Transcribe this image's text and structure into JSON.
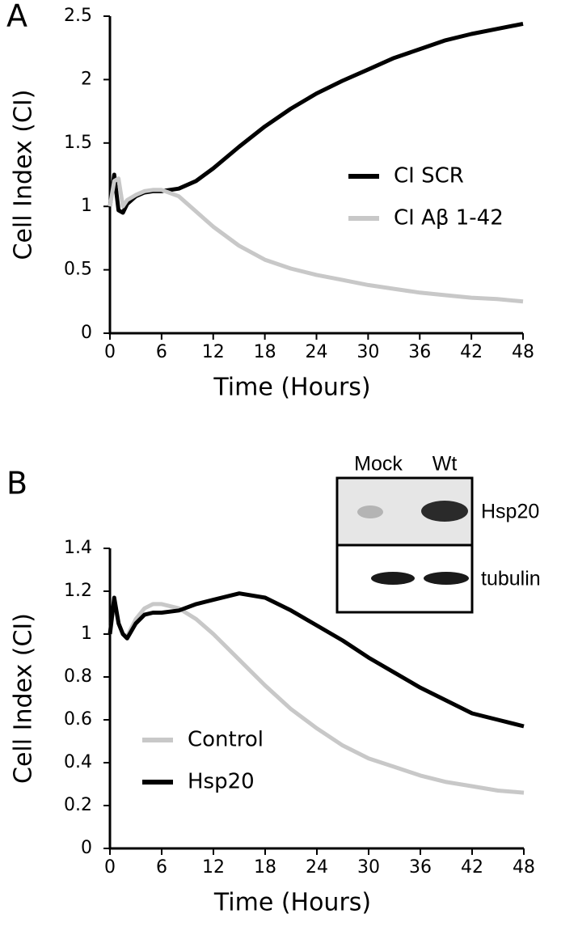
{
  "chart_data": [
    {
      "type": "line",
      "panel": "A",
      "xlabel": "Time (Hours)",
      "ylabel": "Cell Index (CI)",
      "x": [
        0,
        0.5,
        1,
        1.5,
        2,
        3,
        4,
        5,
        6,
        8,
        10,
        12,
        15,
        18,
        21,
        24,
        27,
        30,
        33,
        36,
        39,
        42,
        45,
        48
      ],
      "series": [
        {
          "name": "CI SCR",
          "color": "#000000",
          "values": [
            1.0,
            1.25,
            0.97,
            0.95,
            1.02,
            1.08,
            1.11,
            1.12,
            1.12,
            1.14,
            1.2,
            1.3,
            1.47,
            1.63,
            1.77,
            1.89,
            1.99,
            2.08,
            2.17,
            2.24,
            2.31,
            2.36,
            2.4,
            2.44
          ]
        },
        {
          "name": "CI Aβ 1-42",
          "color": "#c8c8c8",
          "values": [
            1.0,
            1.2,
            1.22,
            1.0,
            1.05,
            1.09,
            1.12,
            1.13,
            1.13,
            1.08,
            0.96,
            0.84,
            0.69,
            0.58,
            0.51,
            0.46,
            0.42,
            0.38,
            0.35,
            0.32,
            0.3,
            0.28,
            0.27,
            0.25
          ]
        }
      ],
      "xlim": [
        0,
        48
      ],
      "xticks": [
        0,
        6,
        12,
        18,
        24,
        30,
        36,
        42,
        48
      ],
      "ylim": [
        0,
        2.5
      ],
      "yticks": [
        0,
        0.5,
        1,
        1.5,
        2,
        2.5
      ],
      "grid": false,
      "legend": "center right"
    },
    {
      "type": "line",
      "panel": "B",
      "xlabel": "Time (Hours)",
      "ylabel": "Cell Index (CI)",
      "x": [
        0,
        0.5,
        1,
        1.5,
        2,
        3,
        4,
        5,
        6,
        8,
        10,
        12,
        15,
        18,
        21,
        24,
        27,
        30,
        33,
        36,
        39,
        42,
        45,
        48
      ],
      "series": [
        {
          "name": "Control",
          "color": "#c8c8c8",
          "values": [
            1.0,
            1.15,
            1.05,
            1.0,
            0.99,
            1.07,
            1.12,
            1.14,
            1.14,
            1.12,
            1.07,
            1.0,
            0.88,
            0.76,
            0.65,
            0.56,
            0.48,
            0.42,
            0.38,
            0.34,
            0.31,
            0.29,
            0.27,
            0.26
          ]
        },
        {
          "name": "Hsp20",
          "color": "#000000",
          "values": [
            1.0,
            1.17,
            1.05,
            1.0,
            0.98,
            1.05,
            1.09,
            1.1,
            1.1,
            1.11,
            1.14,
            1.16,
            1.19,
            1.17,
            1.11,
            1.04,
            0.97,
            0.89,
            0.82,
            0.75,
            0.69,
            0.63,
            0.6,
            0.57
          ]
        }
      ],
      "xlim": [
        0,
        48
      ],
      "xticks": [
        0,
        6,
        12,
        18,
        24,
        30,
        36,
        42,
        48
      ],
      "ylim": [
        0,
        1.4
      ],
      "yticks": [
        0,
        0.2,
        0.4,
        0.6,
        0.8,
        1,
        1.2,
        1.4
      ],
      "grid": false,
      "legend": "lower left",
      "inset": {
        "columns": [
          "Mock",
          "Wt"
        ],
        "rows": [
          "Hsp20",
          "tubulin"
        ]
      }
    }
  ]
}
